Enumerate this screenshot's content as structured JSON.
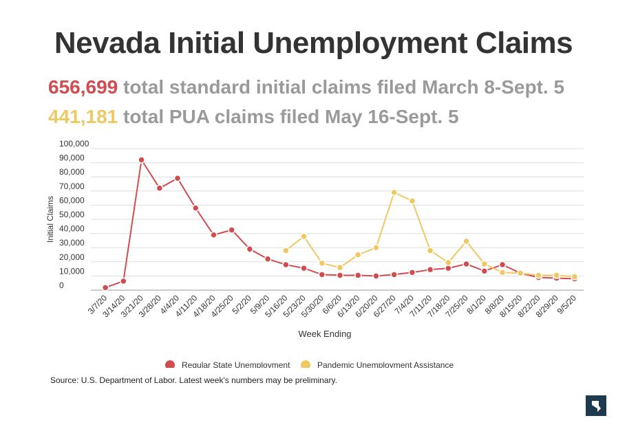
{
  "title": "Nevada Initial Unemployment Claims",
  "stats": [
    {
      "number": "656,699",
      "text": "total standard initial claims filed March 8-Sept. 5",
      "color": "#d14b4f"
    },
    {
      "number": "441,181",
      "text": "total PUA claims filed May 16-Sept. 5",
      "color": "#efc862"
    }
  ],
  "source": "Source: U.S. Department of Labor. Latest week's numbers may be preliminary.",
  "chart_data": {
    "type": "line",
    "xlabel": "Week Ending",
    "ylabel": "Initial Claims",
    "ylim": [
      0,
      100000
    ],
    "yticks": [
      0,
      10000,
      20000,
      30000,
      40000,
      50000,
      60000,
      70000,
      80000,
      90000,
      100000
    ],
    "ytick_labels": [
      "0",
      "10,000",
      "20,000",
      "30,000",
      "40,000",
      "50,000",
      "60,000",
      "70,000",
      "80,000",
      "90,000",
      "100,000"
    ],
    "grid": true,
    "legend_position": "bottom",
    "categories": [
      "3/7/20",
      "3/14/20",
      "3/21/20",
      "3/28/20",
      "4/4/20",
      "4/11/20",
      "4/18/20",
      "4/25/20",
      "5/2/20",
      "5/9/20",
      "5/16/20",
      "5/23/20",
      "5/30/20",
      "6/6/20",
      "6/13/20",
      "6/20/20",
      "6/27/20",
      "7/4/20",
      "7/11/20",
      "7/18/20",
      "7/25/20",
      "8/1/20",
      "8/8/20",
      "8/15/20",
      "8/22/20",
      "8/29/20",
      "9/5/20"
    ],
    "series": [
      {
        "name": "Regular State Unemployment",
        "color": "#d14b4f",
        "values": [
          1800,
          6400,
          92000,
          72000,
          79000,
          58000,
          39000,
          42500,
          29000,
          22000,
          18000,
          15500,
          11000,
          10500,
          10500,
          10000,
          11000,
          12500,
          14500,
          15500,
          18500,
          13500,
          18000,
          12000,
          9000,
          8500,
          8000
        ]
      },
      {
        "name": "Pandemic Unemployment Assistance",
        "color": "#efc862",
        "values": [
          null,
          null,
          null,
          null,
          null,
          null,
          null,
          null,
          null,
          null,
          28000,
          38000,
          19000,
          16000,
          25000,
          30000,
          69000,
          63000,
          28000,
          19500,
          34500,
          18500,
          12500,
          12000,
          10500,
          10500,
          9500
        ]
      }
    ]
  }
}
